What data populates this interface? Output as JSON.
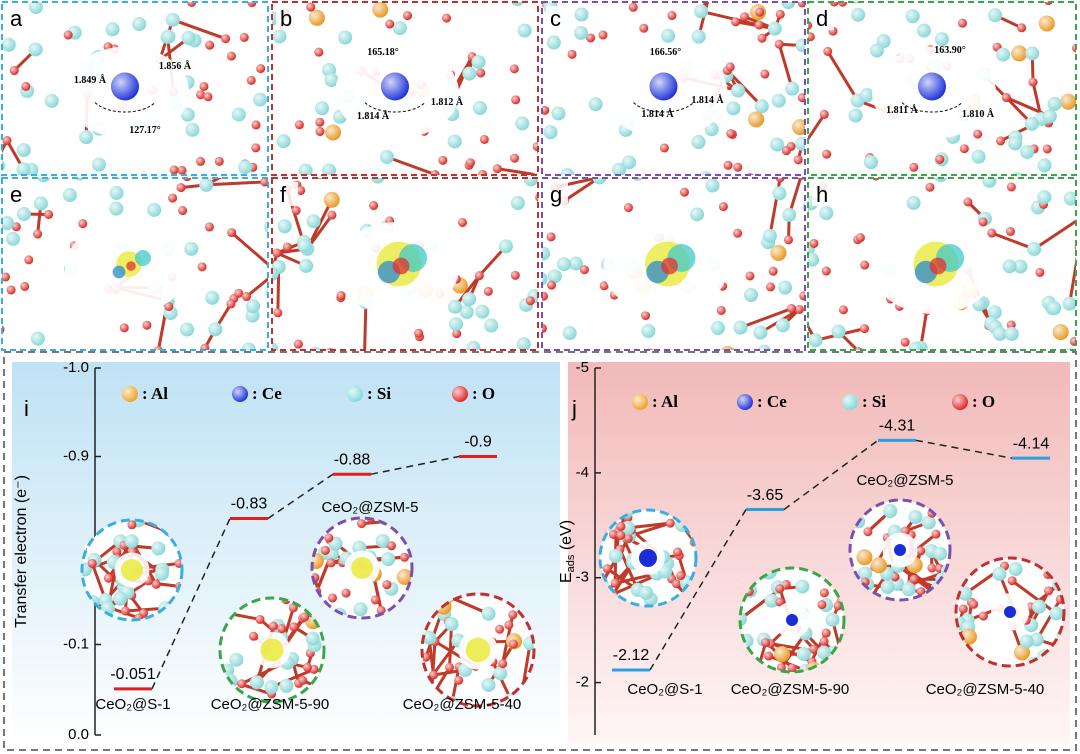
{
  "panels": [
    {
      "letter": "a",
      "annotations": [
        "1.849 Å",
        "1.856 Å",
        "127.17°"
      ]
    },
    {
      "letter": "b",
      "annotations": [
        "165.18°",
        "1.814 Å",
        "1.812 Å"
      ]
    },
    {
      "letter": "c",
      "annotations": [
        "166.56°",
        "1.814 Å",
        "1.814 Å"
      ]
    },
    {
      "letter": "d",
      "annotations": [
        "163.90°",
        "1.811 Å",
        "1.810 Å"
      ]
    },
    {
      "letter": "e",
      "annotations": []
    },
    {
      "letter": "f",
      "annotations": []
    },
    {
      "letter": "g",
      "annotations": []
    },
    {
      "letter": "h",
      "annotations": []
    }
  ],
  "chart_data": [
    {
      "type": "level",
      "letter": "i",
      "y_label": "Transfer electron (e⁻)",
      "categories": [
        "CeO₂@S-1",
        "CeO₂@ZSM-5-90",
        "CeO₂@ZSM-5",
        "CeO₂@ZSM-5-40"
      ],
      "values": [
        -0.051,
        -0.83,
        -0.88,
        -0.9
      ],
      "color": "#e02020",
      "ylim": [
        0.0,
        -1.0
      ],
      "axis_break": [
        -0.2,
        -0.8
      ],
      "yticks": [
        {
          "value": -1.0,
          "label": "-1.0"
        },
        -0.9,
        -0.1,
        {
          "value": 0.0,
          "label": "0.0"
        }
      ],
      "legend": [
        {
          "name": ": Al",
          "color": "#f0a020"
        },
        {
          "name": ": Ce",
          "color": "#1a2ed8"
        },
        {
          "name": ": Si",
          "color": "#7fd8d8"
        },
        {
          "name": ": O",
          "color": "#e02020"
        }
      ]
    },
    {
      "type": "level",
      "letter": "j",
      "y_label": {
        "main": "E",
        "sub": "ads",
        "unit": " (eV)"
      },
      "categories": [
        "CeO₂@S-1",
        "CeO₂@ZSM-5-90",
        "CeO₂@ZSM-5",
        "CeO₂@ZSM-5-40"
      ],
      "values": [
        -2.12,
        -3.65,
        -4.31,
        -4.14
      ],
      "color": "#2a9fe0",
      "ylim": [
        -1.5,
        -5
      ],
      "yticks": [
        -5,
        -4,
        -3,
        -2
      ],
      "legend": [
        {
          "name": ": Al",
          "color": "#f0a020"
        },
        {
          "name": ": Ce",
          "color": "#1a2ed8"
        },
        {
          "name": ": Si",
          "color": "#7fd8d8"
        },
        {
          "name": ": O",
          "color": "#e02020"
        }
      ]
    }
  ]
}
